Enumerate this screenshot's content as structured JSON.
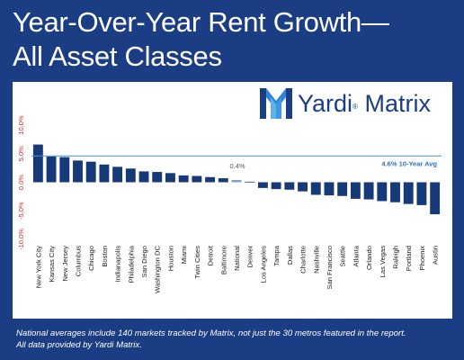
{
  "title_line1": "Year-Over-Year Rent Growth—",
  "title_line2": "All Asset Classes",
  "logo": {
    "brand_word1": "Yardi",
    "brand_mark": "®",
    "brand_word2": "Matrix",
    "icon": "yardi-matrix-logo-icon"
  },
  "footnote_line1": "National averages include 140 markets tracked by Matrix, not just the 30 metros featured in the report.",
  "footnote_line2": "All data provided by Yardi Matrix.",
  "colors": {
    "background": "#1b3d84",
    "bar": "#163a78",
    "national_bar": "#7da0d2",
    "avg_line": "#4a8fd6",
    "avg_label": "#2f70c4",
    "axis_text": "#d9262b"
  },
  "chart_data": {
    "type": "bar",
    "categories": [
      "New York City",
      "Kansas City",
      "New Jersey",
      "Columbus",
      "Chicago",
      "Boston",
      "Indianapolis",
      "Philadelphia",
      "San Diego",
      "Washington DC",
      "Houston",
      "Miami",
      "Twin Cities",
      "Detroit",
      "Baltimore",
      "National",
      "Denver",
      "Los Angeles",
      "Tampa",
      "Dallas",
      "Charlotte",
      "Nashville",
      "San Francisco",
      "Seattle",
      "Atlanta",
      "Orlando",
      "Las Vegas",
      "Raleigh",
      "Portland",
      "Phoenix",
      "Austin"
    ],
    "values": [
      6.6,
      4.5,
      4.4,
      3.8,
      3.6,
      3.1,
      2.7,
      2.4,
      1.9,
      1.8,
      1.6,
      1.2,
      1.1,
      0.9,
      0.7,
      0.4,
      0.1,
      -1.0,
      -1.2,
      -1.3,
      -1.6,
      -2.2,
      -2.3,
      -2.4,
      -2.9,
      -3.0,
      -3.3,
      -3.5,
      -3.8,
      -4.0,
      -5.6
    ],
    "ylim": [
      -10,
      10
    ],
    "yticks": [
      "10.0%",
      "5.0%",
      "0.0%",
      "-5.0%",
      "-10.0%"
    ],
    "ytick_values": [
      10,
      5,
      0,
      -5,
      -10
    ],
    "highlight_category": "National",
    "highlight_label": "0.4%",
    "reference_line": {
      "value": 4.6,
      "label": "4.6% 10-Year Avg"
    },
    "grid": false,
    "legend": "none",
    "xlabel": "",
    "ylabel": ""
  }
}
